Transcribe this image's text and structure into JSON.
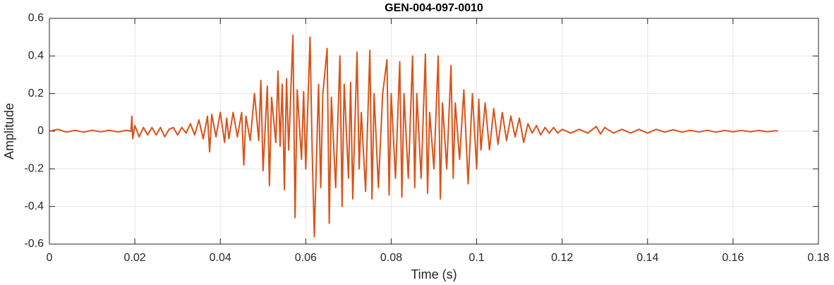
{
  "chart_data": {
    "type": "line",
    "title": "GEN-004-097-0010",
    "x_label": "Time (s)",
    "y_label": "Amplitude",
    "color": "#d95319",
    "grid": true,
    "xlim": [
      0,
      0.18
    ],
    "ylim": [
      -0.6,
      0.6
    ],
    "xticks": [
      0,
      0.02,
      0.04,
      0.06,
      0.08,
      0.1,
      0.12,
      0.14,
      0.16,
      0.18
    ],
    "yticks": [
      -0.6,
      -0.4,
      -0.2,
      0,
      0.2,
      0.4,
      0.6
    ],
    "x": [
      0,
      0.002,
      0.004,
      0.006,
      0.008,
      0.01,
      0.012,
      0.014,
      0.016,
      0.018,
      0.0191,
      0.0193,
      0.0195,
      0.02,
      0.021,
      0.022,
      0.023,
      0.024,
      0.025,
      0.026,
      0.027,
      0.028,
      0.029,
      0.03,
      0.031,
      0.032,
      0.033,
      0.034,
      0.035,
      0.036,
      0.037,
      0.0375,
      0.038,
      0.039,
      0.04,
      0.041,
      0.0415,
      0.042,
      0.043,
      0.044,
      0.045,
      0.0455,
      0.046,
      0.047,
      0.048,
      0.049,
      0.0495,
      0.05,
      0.051,
      0.0515,
      0.052,
      0.053,
      0.0535,
      0.054,
      0.0545,
      0.055,
      0.0555,
      0.056,
      0.057,
      0.0575,
      0.058,
      0.059,
      0.0595,
      0.06,
      0.061,
      0.0615,
      0.062,
      0.063,
      0.0635,
      0.064,
      0.065,
      0.0655,
      0.066,
      0.067,
      0.068,
      0.0685,
      0.069,
      0.07,
      0.0705,
      0.071,
      0.072,
      0.0725,
      0.073,
      0.074,
      0.075,
      0.0755,
      0.076,
      0.077,
      0.078,
      0.079,
      0.0795,
      0.08,
      0.081,
      0.082,
      0.0825,
      0.083,
      0.084,
      0.085,
      0.0855,
      0.086,
      0.087,
      0.088,
      0.0885,
      0.089,
      0.09,
      0.091,
      0.0915,
      0.092,
      0.093,
      0.094,
      0.0945,
      0.095,
      0.096,
      0.097,
      0.098,
      0.099,
      0.1,
      0.1005,
      0.101,
      0.102,
      0.103,
      0.104,
      0.105,
      0.106,
      0.107,
      0.108,
      0.109,
      0.11,
      0.111,
      0.112,
      0.113,
      0.114,
      0.115,
      0.116,
      0.117,
      0.118,
      0.119,
      0.12,
      0.122,
      0.124,
      0.126,
      0.128,
      0.129,
      0.13,
      0.132,
      0.134,
      0.136,
      0.138,
      0.14,
      0.142,
      0.144,
      0.146,
      0.148,
      0.15,
      0.152,
      0.154,
      0.156,
      0.158,
      0.16,
      0.162,
      0.164,
      0.166,
      0.168,
      0.17,
      0.1705
    ],
    "values": [
      0,
      0.01,
      -0.005,
      0.005,
      -0.005,
      0.005,
      -0.003,
      0.005,
      -0.004,
      0.005,
      0,
      0.08,
      -0.04,
      0.03,
      -0.03,
      0.02,
      -0.02,
      0.02,
      -0.02,
      0.02,
      -0.03,
      0.01,
      0.02,
      -0.02,
      0.02,
      -0.01,
      0.04,
      -0.02,
      0.06,
      -0.04,
      0.08,
      -0.11,
      0.09,
      -0.03,
      0.1,
      -0.06,
      0.07,
      -0.04,
      0.1,
      -0.03,
      0.1,
      -0.18,
      0.08,
      -0.05,
      0.2,
      -0.05,
      0.27,
      -0.21,
      0.24,
      -0.29,
      0.18,
      -0.06,
      0.32,
      -0.08,
      0.25,
      -0.31,
      0.28,
      -0.1,
      0.51,
      -0.46,
      0.22,
      -0.15,
      0.21,
      -0.2,
      0.5,
      -0.1,
      -0.56,
      0.25,
      -0.3,
      0.2,
      0.44,
      -0.49,
      0.18,
      -0.3,
      0.4,
      -0.4,
      0.25,
      -0.25,
      0.26,
      -0.36,
      0.42,
      -0.2,
      0.1,
      -0.32,
      0.43,
      -0.36,
      0.2,
      -0.3,
      0.2,
      0.38,
      -0.34,
      0.2,
      -0.25,
      0.37,
      -0.35,
      0.2,
      -0.25,
      0.4,
      -0.3,
      0.2,
      -0.25,
      0.41,
      -0.33,
      0.1,
      -0.2,
      0.4,
      -0.36,
      0.15,
      -0.2,
      0.35,
      -0.25,
      0.15,
      -0.15,
      0.22,
      -0.28,
      0.2,
      -0.2,
      0.17,
      -0.1,
      0.15,
      -0.1,
      0.12,
      -0.07,
      0.1,
      -0.05,
      0.08,
      -0.03,
      0.07,
      -0.06,
      0.04,
      -0.01,
      0.03,
      -0.02,
      0.02,
      -0.01,
      0.02,
      -0.01,
      0.01,
      -0.01,
      0.01,
      -0.01,
      0.025,
      -0.015,
      0.02,
      -0.01,
      0.01,
      -0.01,
      0.01,
      -0.01,
      0.01,
      -0.005,
      0.008,
      -0.005,
      0.005,
      -0.004,
      0.005,
      -0.005,
      0.004,
      -0.003,
      0.004,
      -0.003,
      0.004,
      -0.003,
      0.003,
      0
    ]
  }
}
